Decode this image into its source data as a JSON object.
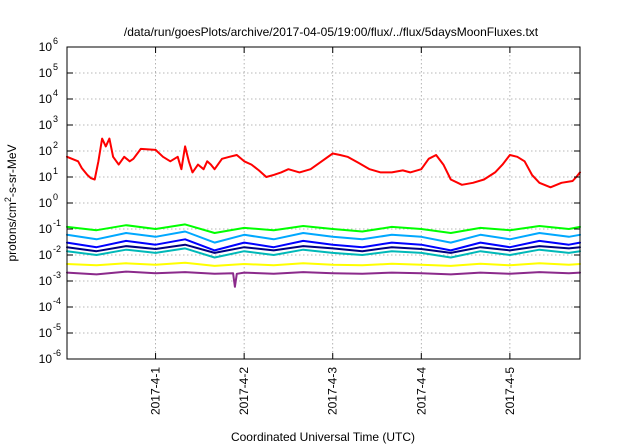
{
  "chart_data": {
    "type": "line",
    "title": "/data/run/goesPlots/archive/2017-04-05/19:00/flux/../flux/5daysMoonFluxes.txt",
    "xlabel": "Coordinated Universal Time (UTC)",
    "ylabel_html": "protons/cm<tspan baseline-shift=\"super\" font-size=\"9\">2</tspan>-s-sr-MeV",
    "ylabel_plain": "protons/cm2-s-sr-MeV",
    "y_scale": "log",
    "ylim": [
      1e-06,
      1000000.0
    ],
    "xlim": [
      "2017-03-31T00:00",
      "2017-04-05T19:00"
    ],
    "grid": true,
    "y_ticks": [
      {
        "value": 1e-06,
        "label": "10",
        "exp": "-6"
      },
      {
        "value": 1e-05,
        "label": "10",
        "exp": "-5"
      },
      {
        "value": 0.0001,
        "label": "10",
        "exp": "-4"
      },
      {
        "value": 0.001,
        "label": "10",
        "exp": "-3"
      },
      {
        "value": 0.01,
        "label": "10",
        "exp": "-2"
      },
      {
        "value": 0.1,
        "label": "10",
        "exp": "-1"
      },
      {
        "value": 1.0,
        "label": "10",
        "exp": "0"
      },
      {
        "value": 10.0,
        "label": "10",
        "exp": "1"
      },
      {
        "value": 100.0,
        "label": "10",
        "exp": "2"
      },
      {
        "value": 1000.0,
        "label": "10",
        "exp": "3"
      },
      {
        "value": 10000.0,
        "label": "10",
        "exp": "4"
      },
      {
        "value": 100000.0,
        "label": "10",
        "exp": "5"
      },
      {
        "value": 1000000.0,
        "label": "10",
        "exp": "6"
      }
    ],
    "x_ticks": [
      {
        "value": "2017-04-01T00:00",
        "label": "2017-4-1"
      },
      {
        "value": "2017-04-02T00:00",
        "label": "2017-4-2"
      },
      {
        "value": "2017-04-03T00:00",
        "label": "2017-4-3"
      },
      {
        "value": "2017-04-04T00:00",
        "label": "2017-4-4"
      },
      {
        "value": "2017-04-05T00:00",
        "label": "2017-4-5"
      }
    ],
    "series": [
      {
        "color": "#ff0000",
        "x": [
          "2017-03-31T00:00",
          "2017-03-31T03:00",
          "2017-03-31T04:00",
          "2017-03-31T05:30",
          "2017-03-31T06:30",
          "2017-03-31T07:30",
          "2017-03-31T08:30",
          "2017-03-31T09:30",
          "2017-03-31T10:30",
          "2017-03-31T11:30",
          "2017-03-31T12:30",
          "2017-03-31T14:00",
          "2017-03-31T15:30",
          "2017-03-31T17:00",
          "2017-03-31T18:00",
          "2017-03-31T20:00",
          "2017-04-01T00:00",
          "2017-04-01T02:00",
          "2017-04-01T04:00",
          "2017-04-01T06:00",
          "2017-04-01T07:00",
          "2017-04-01T08:00",
          "2017-04-01T09:00",
          "2017-04-01T10:00",
          "2017-04-01T11:30",
          "2017-04-01T13:00",
          "2017-04-01T14:00",
          "2017-04-01T15:00",
          "2017-04-01T16:00",
          "2017-04-01T18:00",
          "2017-04-01T20:00",
          "2017-04-01T22:00",
          "2017-04-02T00:00",
          "2017-04-02T02:00",
          "2017-04-02T04:00",
          "2017-04-02T06:00",
          "2017-04-02T08:00",
          "2017-04-02T10:00",
          "2017-04-02T12:00",
          "2017-04-02T15:00",
          "2017-04-02T18:00",
          "2017-04-02T21:00",
          "2017-04-03T00:00",
          "2017-04-03T02:00",
          "2017-04-03T04:00",
          "2017-04-03T07:00",
          "2017-04-03T10:00",
          "2017-04-03T13:00",
          "2017-04-03T16:00",
          "2017-04-03T19:00",
          "2017-04-03T21:00",
          "2017-04-04T00:00",
          "2017-04-04T02:00",
          "2017-04-04T04:00",
          "2017-04-04T06:00",
          "2017-04-04T08:00",
          "2017-04-04T11:00",
          "2017-04-04T14:00",
          "2017-04-04T17:00",
          "2017-04-04T20:00",
          "2017-04-04T22:00",
          "2017-04-05T00:00",
          "2017-04-05T02:00",
          "2017-04-05T04:00",
          "2017-04-05T06:00",
          "2017-04-05T08:00",
          "2017-04-05T11:00",
          "2017-04-05T14:00",
          "2017-04-05T17:00",
          "2017-04-05T18:00",
          "2017-04-05T19:00"
        ],
        "y": [
          60,
          40,
          22,
          12,
          9,
          8,
          40,
          300,
          150,
          300,
          60,
          30,
          60,
          40,
          50,
          120,
          110,
          60,
          40,
          60,
          20,
          150,
          40,
          15,
          30,
          20,
          40,
          30,
          20,
          50,
          60,
          70,
          40,
          30,
          18,
          10,
          12,
          15,
          20,
          15,
          20,
          40,
          80,
          70,
          60,
          35,
          20,
          15,
          15,
          18,
          15,
          20,
          50,
          70,
          30,
          8,
          5,
          6,
          8,
          15,
          30,
          70,
          60,
          40,
          12,
          6,
          4,
          6,
          7,
          10,
          15
        ]
      },
      {
        "color": "#00ff00",
        "x": [
          "2017-03-31T00:00",
          "2017-03-31T08:00",
          "2017-03-31T16:00",
          "2017-04-01T00:00",
          "2017-04-01T08:00",
          "2017-04-01T16:00",
          "2017-04-02T00:00",
          "2017-04-02T08:00",
          "2017-04-02T16:00",
          "2017-04-03T00:00",
          "2017-04-03T08:00",
          "2017-04-03T16:00",
          "2017-04-04T00:00",
          "2017-04-04T08:00",
          "2017-04-04T16:00",
          "2017-04-05T00:00",
          "2017-04-05T08:00",
          "2017-04-05T16:00",
          "2017-04-05T19:00"
        ],
        "y": [
          0.12,
          0.09,
          0.14,
          0.1,
          0.15,
          0.07,
          0.11,
          0.09,
          0.13,
          0.1,
          0.08,
          0.12,
          0.1,
          0.07,
          0.11,
          0.09,
          0.13,
          0.1,
          0.12
        ]
      },
      {
        "color": "#00a8ff",
        "x": [
          "2017-03-31T00:00",
          "2017-03-31T08:00",
          "2017-03-31T16:00",
          "2017-04-01T00:00",
          "2017-04-01T08:00",
          "2017-04-01T16:00",
          "2017-04-02T00:00",
          "2017-04-02T08:00",
          "2017-04-02T16:00",
          "2017-04-03T00:00",
          "2017-04-03T08:00",
          "2017-04-03T16:00",
          "2017-04-04T00:00",
          "2017-04-04T08:00",
          "2017-04-04T16:00",
          "2017-04-05T00:00",
          "2017-04-05T08:00",
          "2017-04-05T16:00",
          "2017-04-05T19:00"
        ],
        "y": [
          0.06,
          0.04,
          0.07,
          0.05,
          0.08,
          0.03,
          0.06,
          0.04,
          0.07,
          0.05,
          0.04,
          0.06,
          0.05,
          0.03,
          0.06,
          0.04,
          0.07,
          0.05,
          0.06
        ]
      },
      {
        "color": "#0000ff",
        "x": [
          "2017-03-31T00:00",
          "2017-03-31T08:00",
          "2017-03-31T16:00",
          "2017-04-01T00:00",
          "2017-04-01T08:00",
          "2017-04-01T16:00",
          "2017-04-02T00:00",
          "2017-04-02T08:00",
          "2017-04-02T16:00",
          "2017-04-03T00:00",
          "2017-04-03T08:00",
          "2017-04-03T16:00",
          "2017-04-04T00:00",
          "2017-04-04T08:00",
          "2017-04-04T16:00",
          "2017-04-05T00:00",
          "2017-04-05T08:00",
          "2017-04-05T16:00",
          "2017-04-05T19:00"
        ],
        "y": [
          0.03,
          0.02,
          0.035,
          0.025,
          0.04,
          0.015,
          0.03,
          0.02,
          0.035,
          0.025,
          0.02,
          0.03,
          0.025,
          0.015,
          0.03,
          0.02,
          0.035,
          0.025,
          0.03
        ]
      },
      {
        "color": "#00b8b8",
        "x": [
          "2017-03-31T00:00",
          "2017-03-31T08:00",
          "2017-03-31T16:00",
          "2017-04-01T00:00",
          "2017-04-01T08:00",
          "2017-04-01T16:00",
          "2017-04-02T00:00",
          "2017-04-02T08:00",
          "2017-04-02T16:00",
          "2017-04-03T00:00",
          "2017-04-03T08:00",
          "2017-04-03T16:00",
          "2017-04-04T00:00",
          "2017-04-04T08:00",
          "2017-04-04T16:00",
          "2017-04-05T00:00",
          "2017-04-05T08:00",
          "2017-04-05T16:00",
          "2017-04-05T19:00"
        ],
        "y": [
          0.014,
          0.01,
          0.016,
          0.012,
          0.018,
          0.008,
          0.014,
          0.01,
          0.016,
          0.012,
          0.01,
          0.014,
          0.012,
          0.008,
          0.014,
          0.01,
          0.016,
          0.012,
          0.014
        ]
      },
      {
        "color": "#000080",
        "x": [
          "2017-03-31T00:00",
          "2017-03-31T08:00",
          "2017-03-31T16:00",
          "2017-04-01T00:00",
          "2017-04-01T08:00",
          "2017-04-01T16:00",
          "2017-04-02T00:00",
          "2017-04-02T08:00",
          "2017-04-02T16:00",
          "2017-04-03T00:00",
          "2017-04-03T08:00",
          "2017-04-03T16:00",
          "2017-04-04T00:00",
          "2017-04-04T08:00",
          "2017-04-04T16:00",
          "2017-04-05T00:00",
          "2017-04-05T08:00",
          "2017-04-05T16:00",
          "2017-04-05T19:00"
        ],
        "y": [
          0.02,
          0.014,
          0.022,
          0.017,
          0.025,
          0.012,
          0.02,
          0.015,
          0.022,
          0.018,
          0.014,
          0.02,
          0.017,
          0.012,
          0.02,
          0.015,
          0.022,
          0.018,
          0.02
        ]
      },
      {
        "color": "#ffff00",
        "x": [
          "2017-03-31T00:00",
          "2017-03-31T08:00",
          "2017-03-31T16:00",
          "2017-04-01T00:00",
          "2017-04-01T08:00",
          "2017-04-01T16:00",
          "2017-04-02T00:00",
          "2017-04-02T08:00",
          "2017-04-02T16:00",
          "2017-04-03T00:00",
          "2017-04-03T08:00",
          "2017-04-03T16:00",
          "2017-04-04T00:00",
          "2017-04-04T08:00",
          "2017-04-04T16:00",
          "2017-04-05T00:00",
          "2017-04-05T08:00",
          "2017-04-05T16:00",
          "2017-04-05T19:00"
        ],
        "y": [
          0.0045,
          0.004,
          0.0048,
          0.0042,
          0.005,
          0.0038,
          0.0045,
          0.004,
          0.0048,
          0.0042,
          0.004,
          0.0046,
          0.0042,
          0.0038,
          0.0046,
          0.004,
          0.0048,
          0.0042,
          0.0045
        ]
      },
      {
        "color": "#8b2a8b",
        "x": [
          "2017-03-31T00:00",
          "2017-03-31T08:00",
          "2017-03-31T16:00",
          "2017-04-01T00:00",
          "2017-04-01T08:00",
          "2017-04-01T16:00",
          "2017-04-01T21:00",
          "2017-04-01T21:30",
          "2017-04-01T22:00",
          "2017-04-02T00:00",
          "2017-04-02T08:00",
          "2017-04-02T16:00",
          "2017-04-03T00:00",
          "2017-04-03T08:00",
          "2017-04-03T16:00",
          "2017-04-04T00:00",
          "2017-04-04T08:00",
          "2017-04-04T16:00",
          "2017-04-05T00:00",
          "2017-04-05T08:00",
          "2017-04-05T16:00",
          "2017-04-05T19:00"
        ],
        "y": [
          0.0021,
          0.0018,
          0.0023,
          0.002,
          0.0022,
          0.0019,
          0.002,
          0.0006,
          0.0019,
          0.0021,
          0.0019,
          0.0022,
          0.002,
          0.0019,
          0.0021,
          0.002,
          0.0018,
          0.0021,
          0.0019,
          0.0022,
          0.002,
          0.0021
        ]
      }
    ]
  }
}
